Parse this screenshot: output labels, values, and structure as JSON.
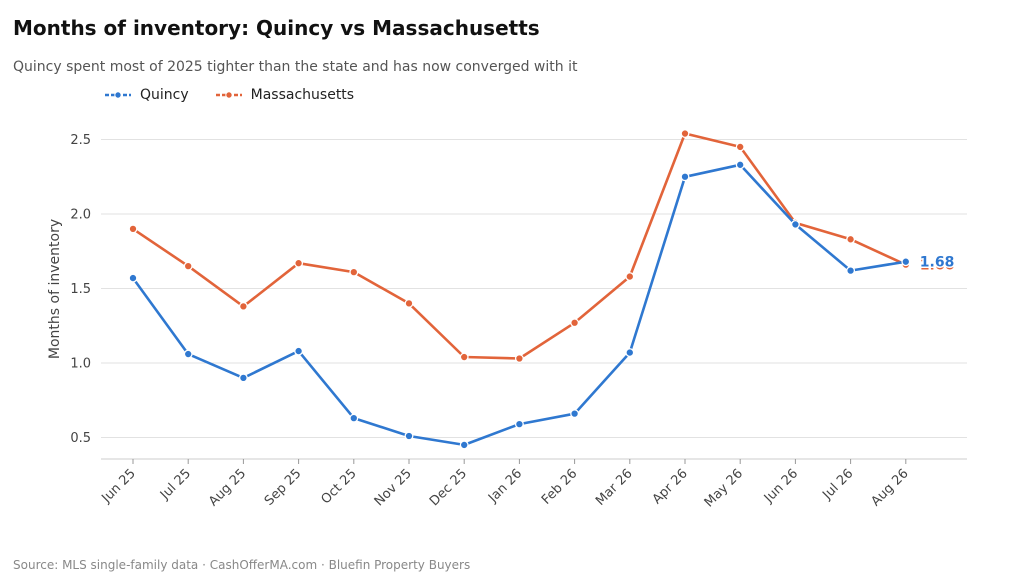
{
  "title": "Months of inventory: Quincy vs Massachusetts",
  "subtitle": "Quincy spent most of 2025 tighter than the state and has now converged with it",
  "source": "Source: MLS single-family data  ·  CashOfferMA.com  ·  Bluefin Property Buyers",
  "colors": {
    "quincy": "#2f78d0",
    "massachusetts": "#e2643a",
    "grid": "#e2e2e2",
    "axis": "#cccccc"
  },
  "chart_data": {
    "type": "line",
    "title": "Months of inventory: Quincy vs Massachusetts",
    "subtitle": "Quincy spent most of 2025 tighter than the state and has now converged with it",
    "xlabel": "",
    "ylabel": "Months of inventory",
    "ylim": [
      0.35,
      2.58
    ],
    "yticks": [
      "0.5",
      "1.0",
      "1.5",
      "2.0",
      "2.5"
    ],
    "ytick_values": [
      0.5,
      1.0,
      1.5,
      2.0,
      2.5
    ],
    "grid": true,
    "legend": "top-left",
    "categories": [
      "Jun 25",
      "Jul 25",
      "Aug 25",
      "Sep 25",
      "Oct 25",
      "Nov 25",
      "Dec 25",
      "Jan 26",
      "Feb 26",
      "Mar 26",
      "Apr 26",
      "May 26",
      "Jun 26",
      "Jul 26",
      "Aug 26"
    ],
    "series": [
      {
        "name": "Quincy",
        "values": [
          1.57,
          1.06,
          0.9,
          1.08,
          0.63,
          0.51,
          0.45,
          0.59,
          0.66,
          1.07,
          2.25,
          2.33,
          1.93,
          1.62,
          1.68
        ],
        "end_label": "1.68"
      },
      {
        "name": "Massachusetts",
        "values": [
          1.9,
          1.65,
          1.38,
          1.67,
          1.61,
          1.4,
          1.04,
          1.03,
          1.27,
          1.58,
          2.54,
          2.45,
          1.94,
          1.83,
          1.66
        ],
        "end_label": "1.66"
      }
    ]
  }
}
